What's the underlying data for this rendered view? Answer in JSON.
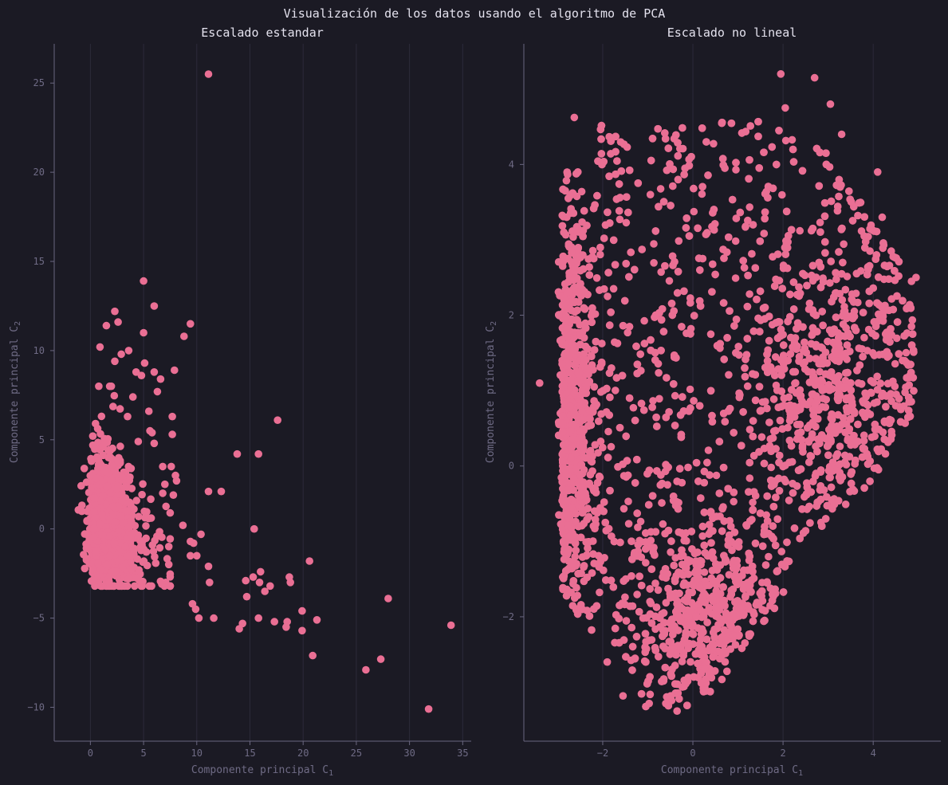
{
  "figure_title": "Visualización de los datos usando el algoritmo de PCA",
  "colors": {
    "background": "#1b1a24",
    "point": "#ea6f94",
    "text": "#e4e2ee",
    "axis": "#6f6b85",
    "grid": "#2c2a3a"
  },
  "chart_data": [
    {
      "type": "scatter",
      "title": "Escalado estandar",
      "xlabel": "Componente principal C",
      "xlabel_sub": "1",
      "ylabel": "Componente principal C",
      "ylabel_sub": "2",
      "xlim": [
        -3.4,
        35.8
      ],
      "ylim": [
        -11.9,
        27.2
      ],
      "xticks": [
        0,
        5,
        10,
        15,
        20,
        25,
        30,
        35
      ],
      "yticks": [
        -10,
        -5,
        0,
        5,
        10,
        15,
        20,
        25
      ],
      "grid": "vertical",
      "cloud": {
        "description": "dense cluster of several thousand points",
        "cx": 0.8,
        "cy": -0.2,
        "sx": 1.3,
        "sy": 1.3,
        "x_range": [
          -1.8,
          7.5
        ],
        "y_range": [
          -3.2,
          8.0
        ]
      },
      "points": [
        [
          11.1,
          25.5
        ],
        [
          5.0,
          13.9
        ],
        [
          6.0,
          12.5
        ],
        [
          2.3,
          12.2
        ],
        [
          1.5,
          11.4
        ],
        [
          2.6,
          11.6
        ],
        [
          9.4,
          11.5
        ],
        [
          5.0,
          11.0
        ],
        [
          8.8,
          10.8
        ],
        [
          0.9,
          10.2
        ],
        [
          3.6,
          10.0
        ],
        [
          2.9,
          9.8
        ],
        [
          5.1,
          9.3
        ],
        [
          2.3,
          9.4
        ],
        [
          7.9,
          8.9
        ],
        [
          4.3,
          8.8
        ],
        [
          6.0,
          8.8
        ],
        [
          4.8,
          8.6
        ],
        [
          6.6,
          8.4
        ],
        [
          6.3,
          7.7
        ],
        [
          4.0,
          7.4
        ],
        [
          5.5,
          6.6
        ],
        [
          7.7,
          6.3
        ],
        [
          17.6,
          6.1
        ],
        [
          5.6,
          5.5
        ],
        [
          7.7,
          5.3
        ],
        [
          5.8,
          5.4
        ],
        [
          4.5,
          4.9
        ],
        [
          6.0,
          4.8
        ],
        [
          13.8,
          4.2
        ],
        [
          15.8,
          4.2
        ],
        [
          6.8,
          3.5
        ],
        [
          7.6,
          3.5
        ],
        [
          8.0,
          3.0
        ],
        [
          7.0,
          2.5
        ],
        [
          8.1,
          2.7
        ],
        [
          11.1,
          2.1
        ],
        [
          12.3,
          2.1
        ],
        [
          6.8,
          2.0
        ],
        [
          7.8,
          1.9
        ],
        [
          7.5,
          0.9
        ],
        [
          8.7,
          0.2
        ],
        [
          15.4,
          0.0
        ],
        [
          10.4,
          -0.3
        ],
        [
          9.4,
          -0.7
        ],
        [
          9.7,
          -0.8
        ],
        [
          9.4,
          -1.5
        ],
        [
          10.0,
          -1.5
        ],
        [
          20.6,
          -1.8
        ],
        [
          11.1,
          -2.1
        ],
        [
          16.0,
          -2.4
        ],
        [
          15.3,
          -2.7
        ],
        [
          18.7,
          -2.7
        ],
        [
          14.6,
          -2.9
        ],
        [
          15.9,
          -3.0
        ],
        [
          11.2,
          -3.0
        ],
        [
          18.8,
          -3.0
        ],
        [
          16.9,
          -3.2
        ],
        [
          16.4,
          -3.5
        ],
        [
          9.6,
          -4.2
        ],
        [
          9.9,
          -4.5
        ],
        [
          14.7,
          -3.8
        ],
        [
          28.0,
          -3.9
        ],
        [
          19.9,
          -4.6
        ],
        [
          10.2,
          -5.0
        ],
        [
          11.6,
          -5.0
        ],
        [
          15.8,
          -5.0
        ],
        [
          21.3,
          -5.1
        ],
        [
          17.3,
          -5.2
        ],
        [
          18.5,
          -5.2
        ],
        [
          14.3,
          -5.3
        ],
        [
          14.0,
          -5.6
        ],
        [
          18.4,
          -5.5
        ],
        [
          33.9,
          -5.4
        ],
        [
          19.9,
          -5.7
        ],
        [
          20.9,
          -7.1
        ],
        [
          27.3,
          -7.3
        ],
        [
          25.9,
          -7.9
        ],
        [
          31.8,
          -10.1
        ]
      ]
    },
    {
      "type": "scatter",
      "title": "Escalado no lineal",
      "xlabel": "Componente principal C",
      "xlabel_sub": "1",
      "ylabel": "Componente principal C",
      "ylabel_sub": "2",
      "xlim": [
        -3.75,
        5.5
      ],
      "ylim": [
        -3.65,
        5.6
      ],
      "xticks": [
        -2,
        0,
        2,
        4
      ],
      "yticks": [
        -2,
        0,
        2,
        4
      ],
      "grid": "vertical",
      "cloud": {
        "description": "very dense fan-shaped cloud of many thousand points",
        "x_range": [
          -3.3,
          5.0
        ],
        "y_range": [
          -3.3,
          5.2
        ]
      },
      "points": [
        [
          1.95,
          5.2
        ],
        [
          2.7,
          5.15
        ],
        [
          2.05,
          4.75
        ],
        [
          3.05,
          4.8
        ],
        [
          3.3,
          4.4
        ],
        [
          4.1,
          3.9
        ],
        [
          4.95,
          2.5
        ],
        [
          4.75,
          2.1
        ],
        [
          4.85,
          1.85
        ],
        [
          4.4,
          2.85
        ],
        [
          4.5,
          0.8
        ],
        [
          -2.55,
          3.9
        ],
        [
          -3.4,
          1.1
        ],
        [
          -1.9,
          -2.6
        ],
        [
          -0.6,
          -3.15
        ],
        [
          -1.55,
          -3.05
        ],
        [
          -0.35,
          -3.25
        ],
        [
          4.2,
          3.3
        ],
        [
          4.85,
          2.45
        ],
        [
          3.8,
          3.05
        ]
      ]
    }
  ]
}
